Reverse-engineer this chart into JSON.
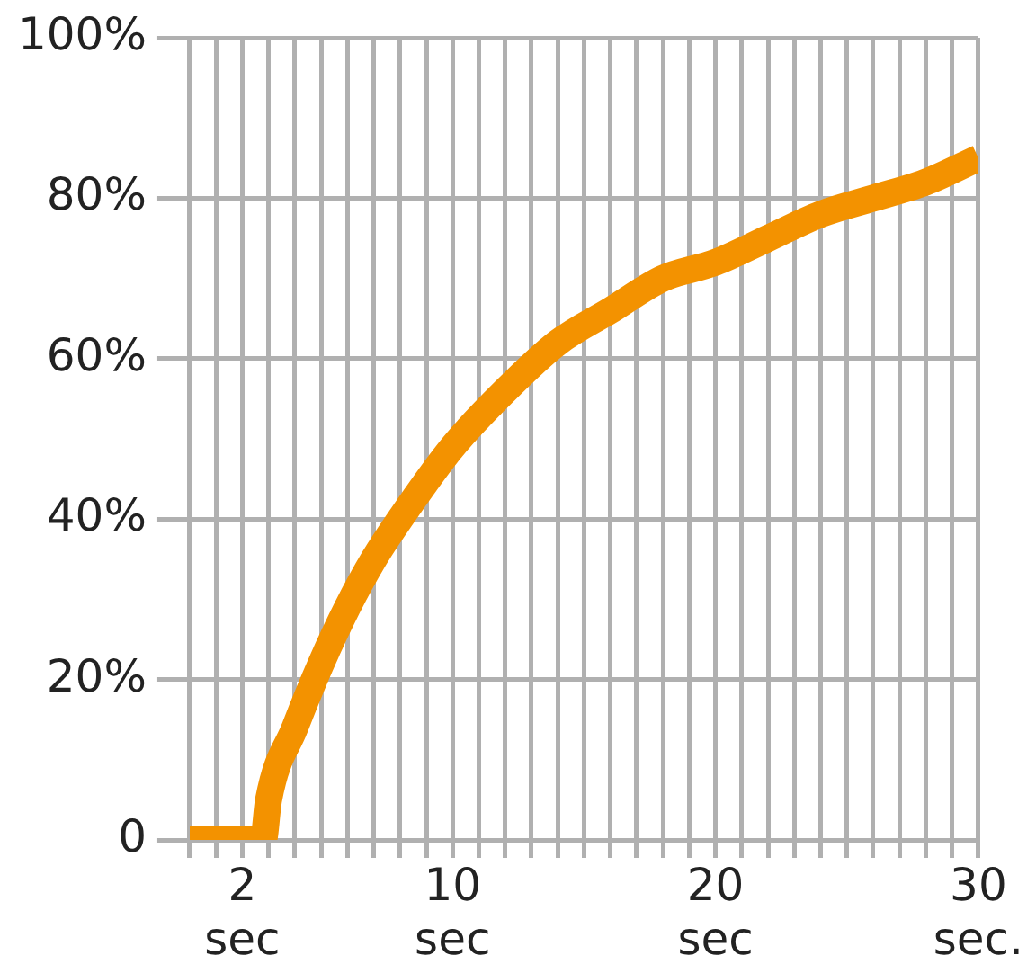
{
  "chart_data": {
    "type": "line",
    "x": [
      0,
      2,
      2.8,
      3,
      4,
      5,
      6,
      7,
      8,
      10,
      12,
      14,
      16,
      18,
      20,
      22,
      24,
      26,
      28,
      30
    ],
    "series": [
      {
        "color": "#f39200",
        "values": [
          0,
          0,
          0,
          5,
          14,
          22,
          29,
          35,
          40,
          49,
          56,
          62,
          66,
          70,
          72,
          75,
          78,
          80,
          82,
          85
        ]
      }
    ],
    "xlim": [
      0,
      30
    ],
    "xticks": [
      {
        "value": 0,
        "label": null
      },
      {
        "value": 1,
        "label": null
      },
      {
        "value": 2,
        "label": "2\nsec"
      },
      {
        "value": 3,
        "label": null
      },
      {
        "value": 4,
        "label": null
      },
      {
        "value": 5,
        "label": null
      },
      {
        "value": 6,
        "label": null
      },
      {
        "value": 7,
        "label": null
      },
      {
        "value": 8,
        "label": null
      },
      {
        "value": 9,
        "label": null
      },
      {
        "value": 10,
        "label": "10\nsec"
      },
      {
        "value": 11,
        "label": null
      },
      {
        "value": 12,
        "label": null
      },
      {
        "value": 13,
        "label": null
      },
      {
        "value": 14,
        "label": null
      },
      {
        "value": 15,
        "label": null
      },
      {
        "value": 16,
        "label": null
      },
      {
        "value": 17,
        "label": null
      },
      {
        "value": 18,
        "label": null
      },
      {
        "value": 19,
        "label": null
      },
      {
        "value": 20,
        "label": "20\nsec"
      },
      {
        "value": 21,
        "label": null
      },
      {
        "value": 22,
        "label": null
      },
      {
        "value": 23,
        "label": null
      },
      {
        "value": 24,
        "label": null
      },
      {
        "value": 25,
        "label": null
      },
      {
        "value": 26,
        "label": null
      },
      {
        "value": 27,
        "label": null
      },
      {
        "value": 28,
        "label": null
      },
      {
        "value": 29,
        "label": null
      },
      {
        "value": 30,
        "label": "30\nsec."
      }
    ],
    "ylim": [
      0,
      100
    ],
    "yticks": [
      0,
      {
        "value": 20,
        "label": "20%"
      },
      {
        "value": 40,
        "label": "40%"
      },
      {
        "value": 60,
        "label": "60%"
      },
      {
        "value": 80,
        "label": "80%"
      },
      {
        "value": 100,
        "label": "100%"
      }
    ],
    "grid": true,
    "legend": false,
    "marker": "none",
    "line_style": "solid"
  }
}
